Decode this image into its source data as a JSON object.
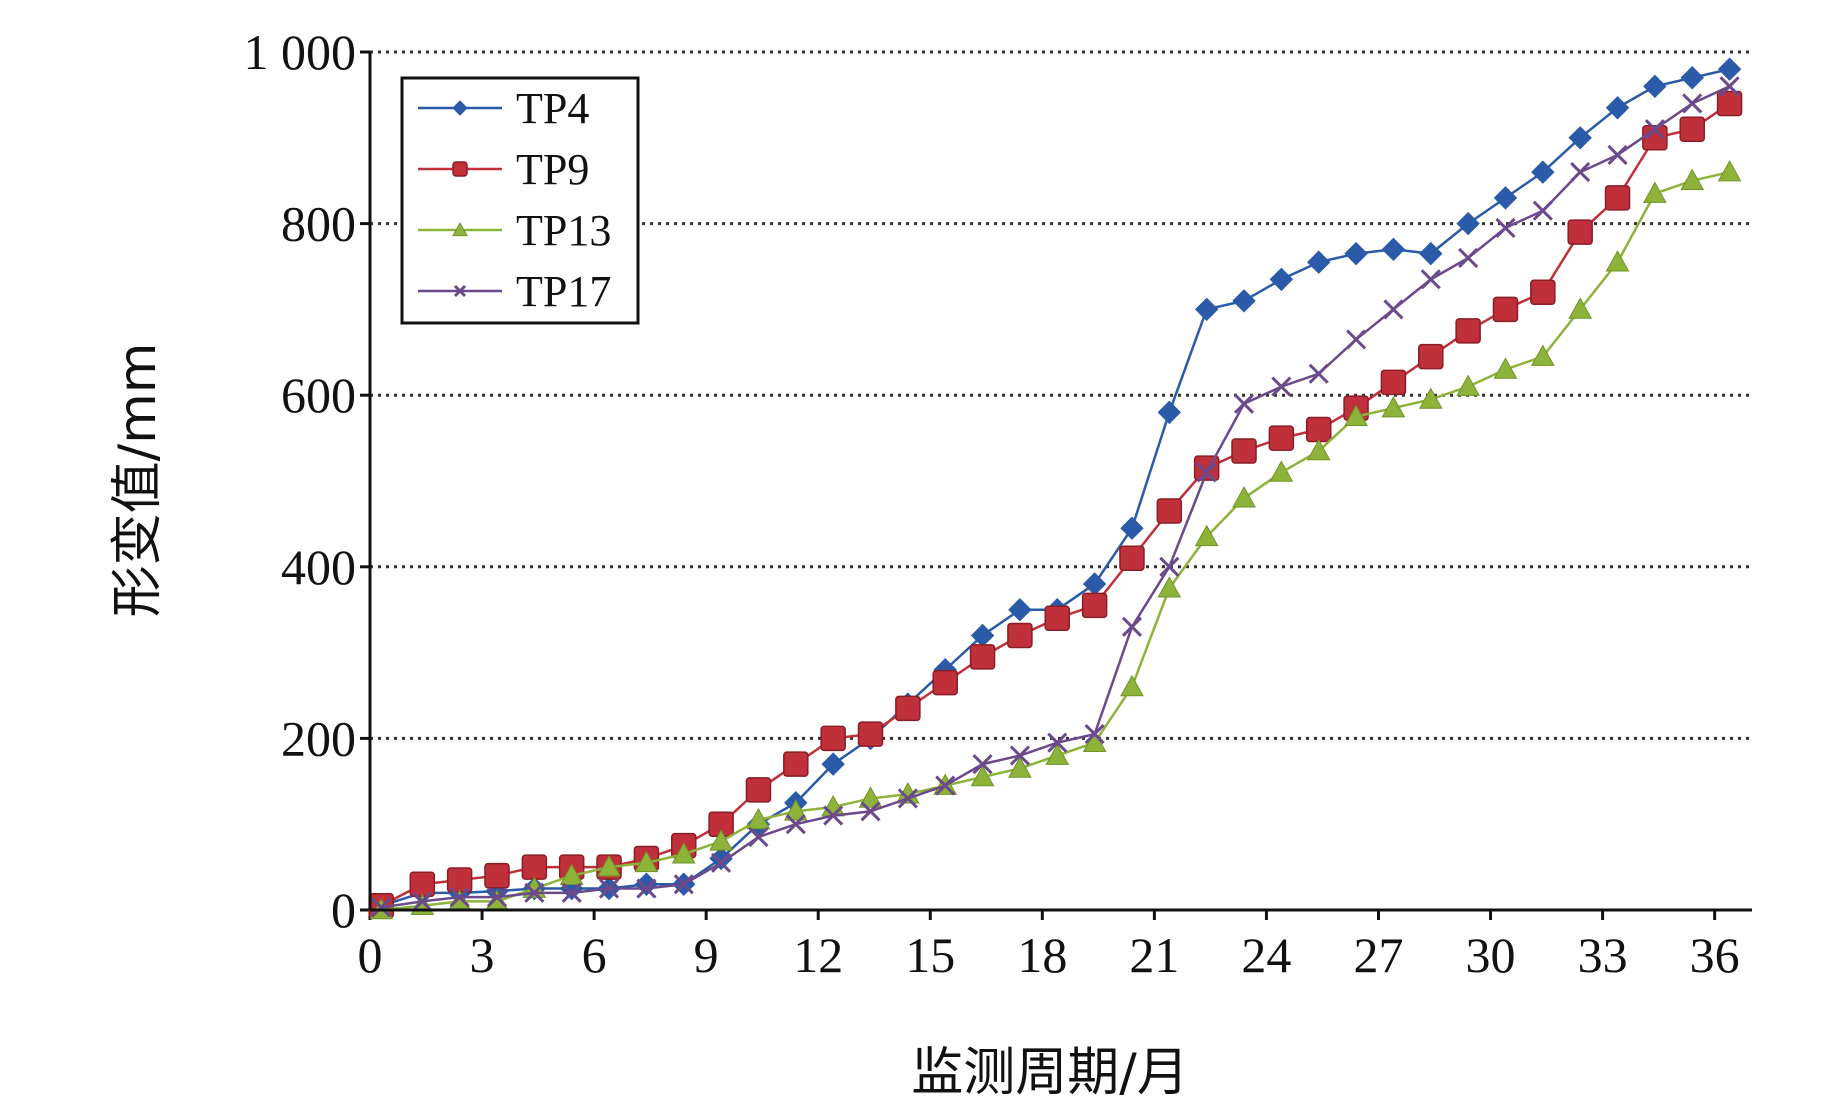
{
  "chart_data": {
    "type": "line",
    "title": "",
    "xlabel": "监测周期/月",
    "ylabel": "形变值/mm",
    "xlim": [
      0,
      37
    ],
    "ylim": [
      0,
      1000
    ],
    "x_ticks": [
      0,
      3,
      6,
      9,
      12,
      15,
      18,
      21,
      24,
      27,
      30,
      33,
      36
    ],
    "x_tick_labels": [
      "0",
      "3",
      "6",
      "9",
      "12",
      "15",
      "18",
      "21",
      "24",
      "27",
      "30",
      "33",
      "36"
    ],
    "y_ticks": [
      0,
      200,
      400,
      600,
      800,
      1000
    ],
    "y_tick_labels": [
      "0",
      "200",
      "400",
      "600",
      "800",
      "1 000"
    ],
    "grid": "horizontal dotted",
    "legend_position": "top-left",
    "x": [
      0.3,
      1.4,
      2.4,
      3.4,
      4.4,
      5.4,
      6.4,
      7.4,
      8.4,
      9.4,
      10.4,
      11.4,
      12.4,
      13.4,
      14.4,
      15.4,
      16.4,
      17.4,
      18.4,
      19.4,
      20.4,
      21.4,
      22.4,
      23.4,
      24.4,
      25.4,
      26.4,
      27.4,
      28.4,
      29.4,
      30.4,
      31.4,
      32.4,
      33.4,
      34.4,
      35.4,
      36.4
    ],
    "series": [
      {
        "name": "TP4",
        "color": "#2a5aa8",
        "marker": "diamond",
        "values": [
          5,
          20,
          20,
          22,
          25,
          25,
          25,
          30,
          30,
          60,
          100,
          125,
          170,
          200,
          240,
          280,
          320,
          350,
          350,
          380,
          445,
          580,
          700,
          710,
          735,
          755,
          765,
          770,
          765,
          800,
          830,
          860,
          900,
          935,
          960,
          970,
          980
        ]
      },
      {
        "name": "TP9",
        "color": "#c0303a",
        "marker": "square",
        "values": [
          5,
          30,
          35,
          40,
          50,
          50,
          50,
          60,
          75,
          100,
          140,
          170,
          200,
          205,
          235,
          265,
          295,
          320,
          340,
          355,
          410,
          465,
          515,
          535,
          550,
          560,
          585,
          615,
          645,
          675,
          700,
          720,
          790,
          830,
          900,
          910,
          940
        ]
      },
      {
        "name": "TP13",
        "color": "#8db33a",
        "marker": "triangle",
        "values": [
          0,
          5,
          10,
          10,
          25,
          40,
          50,
          55,
          65,
          80,
          105,
          115,
          120,
          130,
          135,
          145,
          155,
          165,
          180,
          195,
          260,
          375,
          435,
          480,
          510,
          535,
          575,
          585,
          595,
          610,
          630,
          645,
          700,
          755,
          835,
          850,
          860
        ]
      },
      {
        "name": "TP17",
        "color": "#6b4a8c",
        "marker": "x",
        "values": [
          3,
          10,
          15,
          15,
          20,
          20,
          25,
          25,
          30,
          55,
          85,
          100,
          110,
          115,
          130,
          145,
          170,
          180,
          195,
          205,
          330,
          400,
          510,
          590,
          610,
          625,
          665,
          700,
          735,
          760,
          795,
          815,
          860,
          880,
          910,
          940,
          960
        ]
      }
    ]
  }
}
